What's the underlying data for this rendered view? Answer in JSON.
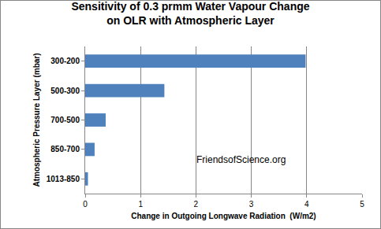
{
  "chart_data": {
    "type": "bar",
    "orientation": "horizontal",
    "title": "Sensitivity of 0.3 prmm Water Vapour Change\non OLR with Atmospheric Layer",
    "x_label": "Change in Outgoing Longwave Radiation  (W/m2)",
    "y_label": "Atmospheric Pressure Layer (mbar)",
    "annotations": [
      "FriendsofScience.org"
    ],
    "categories": [
      "1013-850",
      "850-700",
      "700-500",
      "500-300",
      "300-200"
    ],
    "values": [
      0.05,
      0.17,
      0.37,
      1.43,
      3.98
    ],
    "color": "#4f81bd",
    "xlim": [
      0,
      5
    ],
    "xticks": [
      0,
      1,
      2,
      3,
      4,
      5
    ],
    "grid": true
  }
}
